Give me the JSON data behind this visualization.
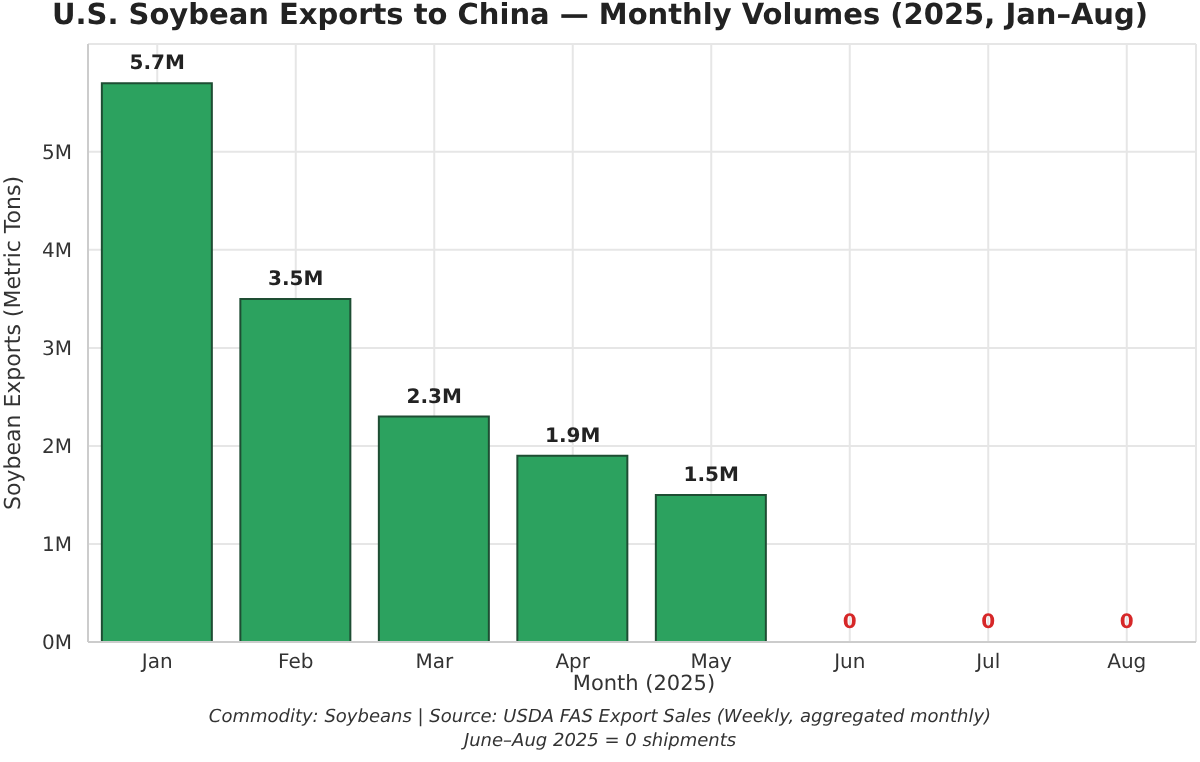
{
  "chart_data": {
    "type": "bar",
    "title": "U.S. Soybean Exports to China — Monthly Volumes (2025, Jan–Aug)",
    "xlabel": "Month (2025)",
    "ylabel": "Soybean Exports (Metric Tons)",
    "categories": [
      "Jan",
      "Feb",
      "Mar",
      "Apr",
      "May",
      "Jun",
      "Jul",
      "Aug"
    ],
    "values": [
      5.7,
      3.5,
      2.3,
      1.9,
      1.5,
      0,
      0,
      0
    ],
    "value_labels": [
      "5.7M",
      "3.5M",
      "2.3M",
      "1.9M",
      "1.5M",
      "0",
      "0",
      "0"
    ],
    "color": "#2ca25f",
    "ylim": [
      0,
      6.1
    ],
    "yticks": [
      {
        "value": 0,
        "label": "0M"
      },
      {
        "value": 1,
        "label": "1M"
      },
      {
        "value": 2,
        "label": "2M"
      },
      {
        "value": 3,
        "label": "3M"
      },
      {
        "value": 4,
        "label": "4M"
      },
      {
        "value": 5,
        "label": "5M"
      }
    ],
    "grid": true,
    "legend": false,
    "annotations": [
      "Commodity: Soybeans | Source: USDA FAS Export Sales (Weekly, aggregated monthly)",
      "June–Aug 2025 = 0 shipments"
    ]
  }
}
